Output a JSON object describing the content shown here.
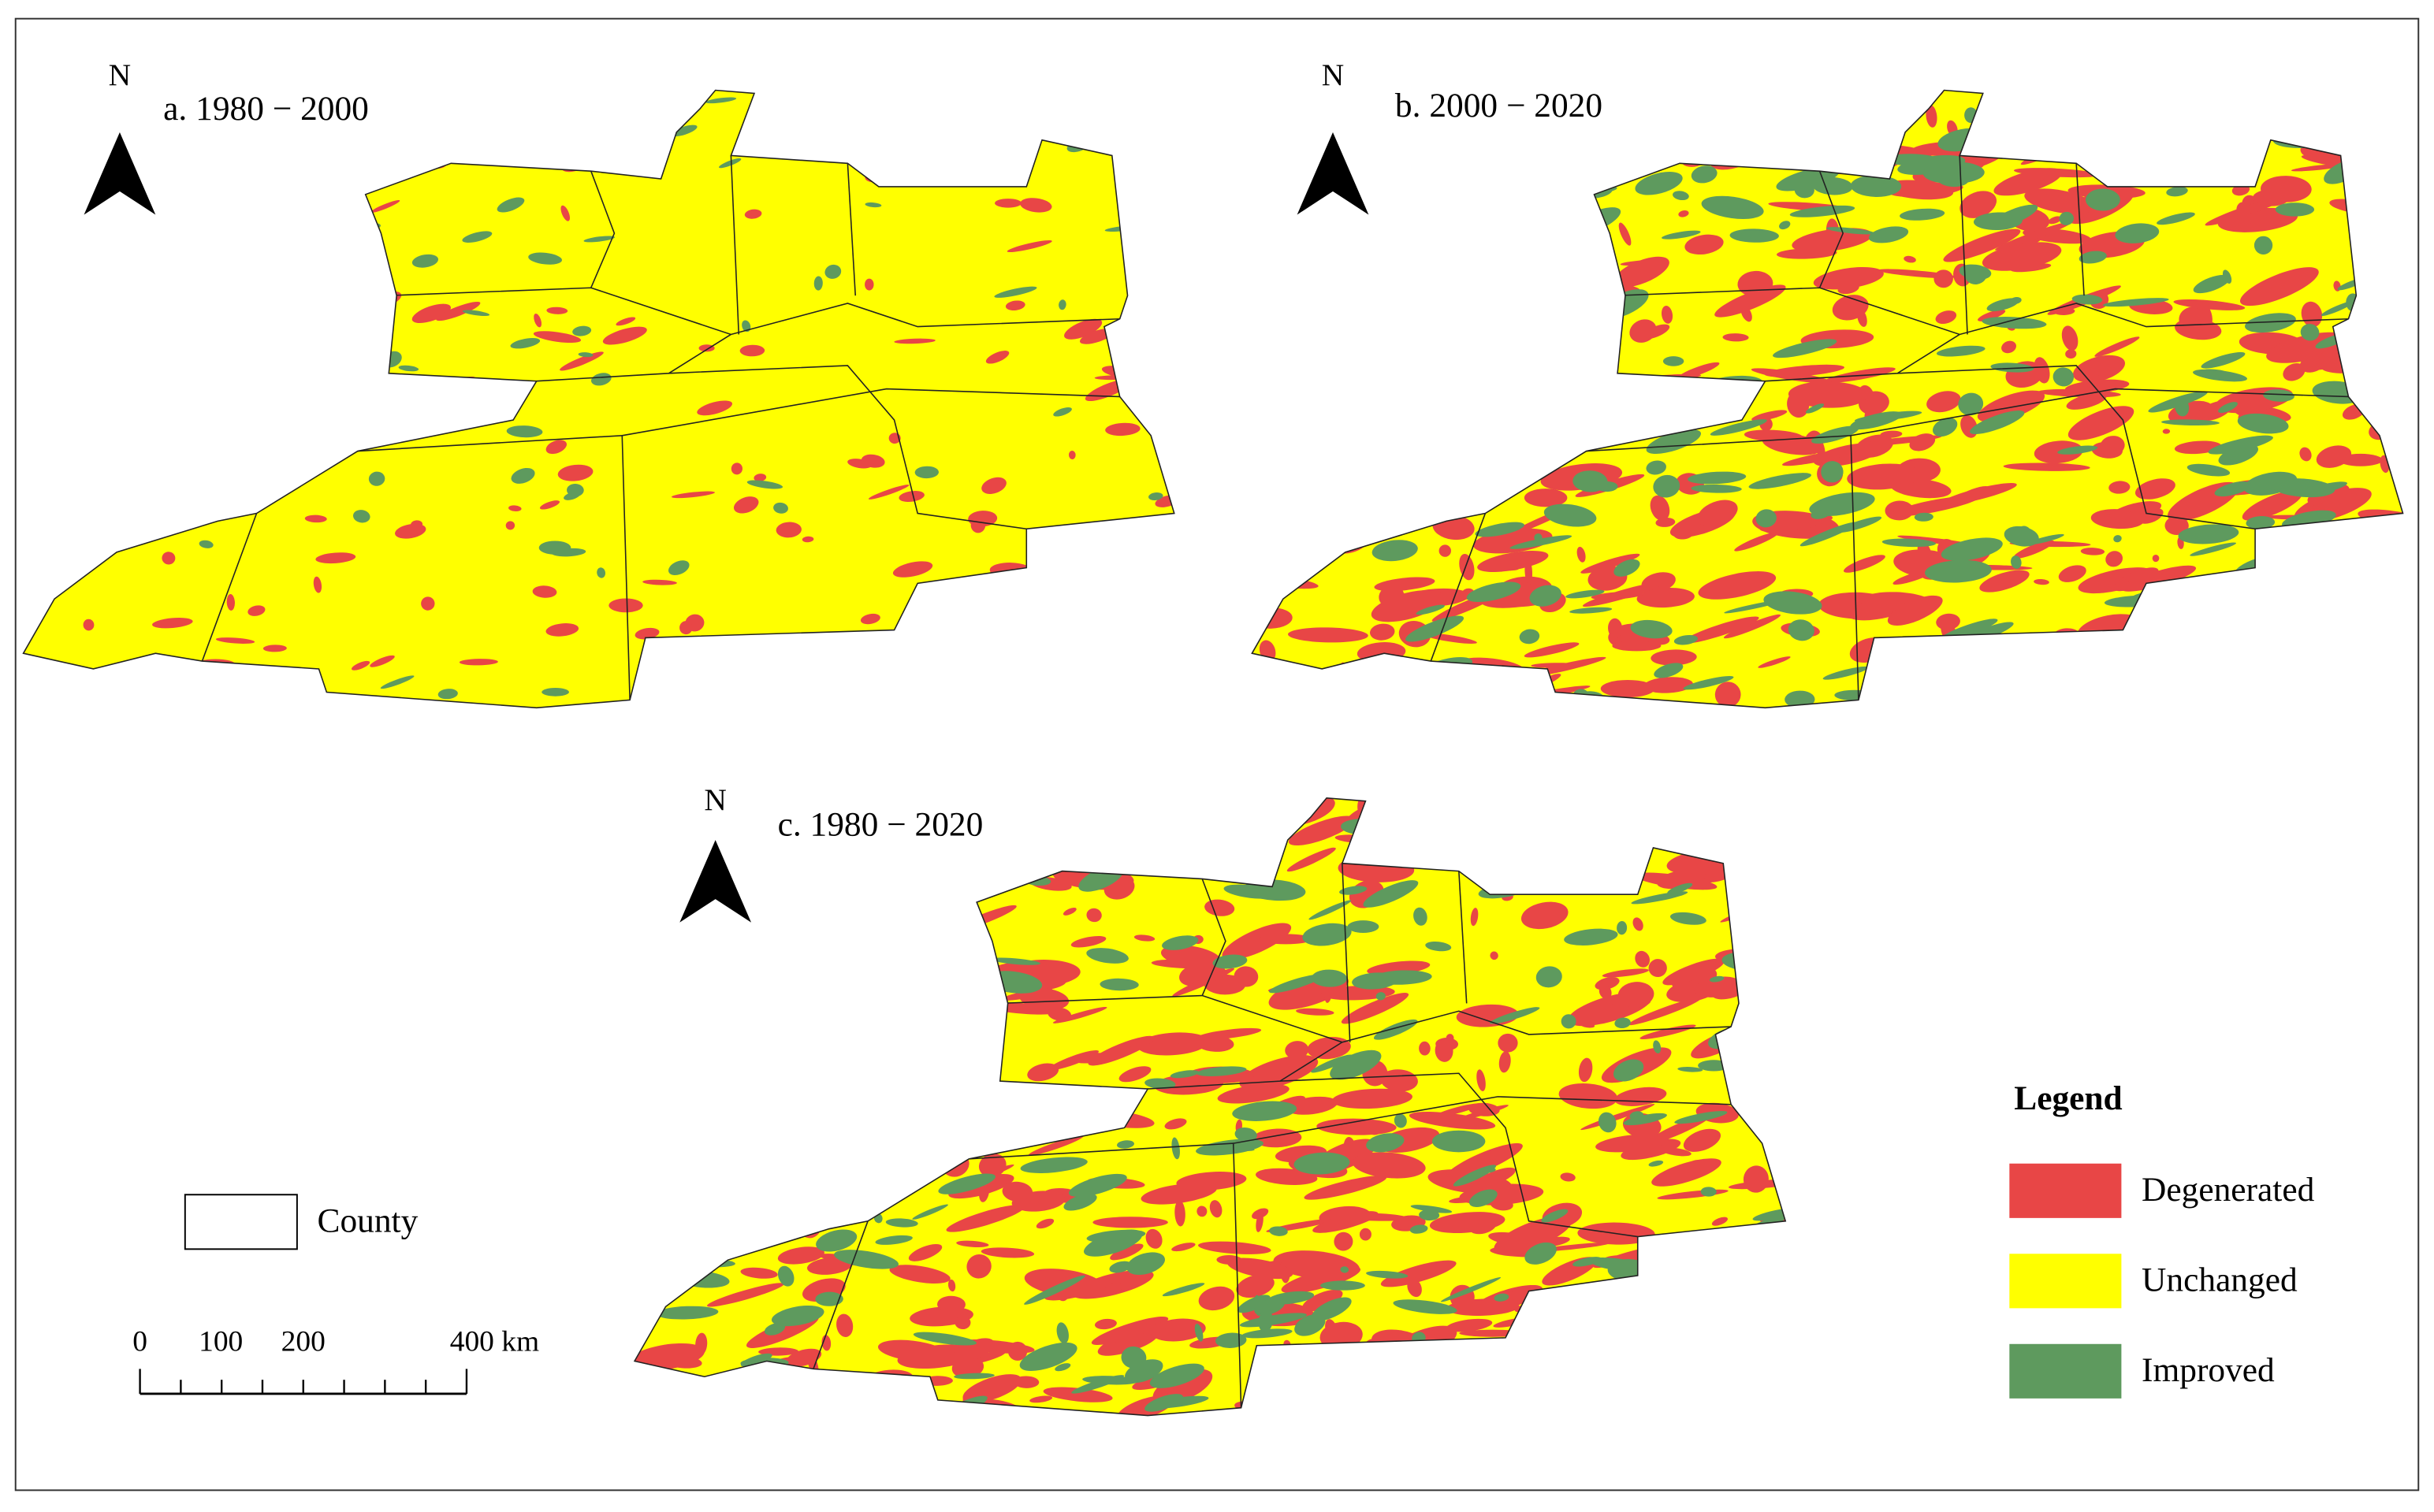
{
  "maps": [
    {
      "title": "a. 1980 − 2000",
      "north": "N"
    },
    {
      "title": "b. 2000 − 2020",
      "north": "N"
    },
    {
      "title": "c. 1980 − 2020",
      "north": "N"
    }
  ],
  "legend": {
    "title": "Legend",
    "items": [
      {
        "label": "Degenerated",
        "color": "#e84646"
      },
      {
        "label": "Unchanged",
        "color": "#ffff00"
      },
      {
        "label": "Improved",
        "color": "#5e9a5e"
      }
    ]
  },
  "county_legend": {
    "label": "County"
  },
  "scale_bar": {
    "labels": [
      "0",
      "100",
      "200",
      "400 km"
    ]
  }
}
